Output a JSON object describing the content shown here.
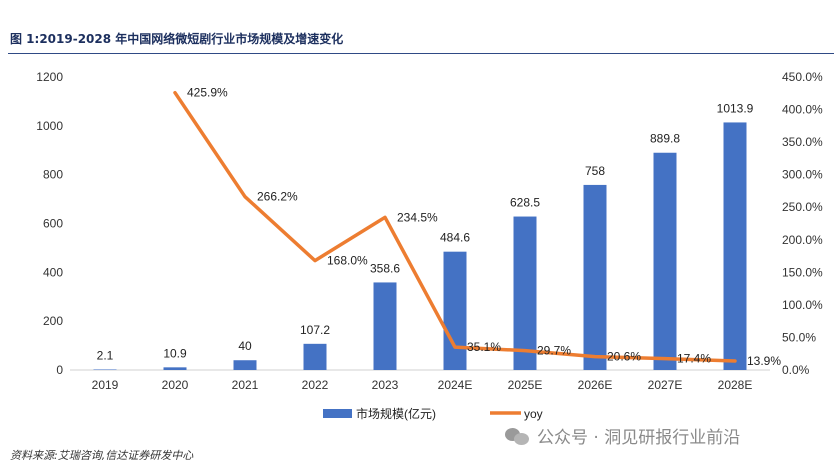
{
  "title": "图 1:2019-2028 年中国网络微短剧行业市场规模及增速变化",
  "source": "资料来源:艾瑞咨询,信达证券研发中心",
  "watermark": "公众号 · 洞见研报行业前沿",
  "chart_data": {
    "type": "bar",
    "categories": [
      "2019",
      "2020",
      "2021",
      "2022",
      "2023",
      "2024E",
      "2025E",
      "2026E",
      "2027E",
      "2028E"
    ],
    "series": [
      {
        "name": "市场规模(亿元)",
        "type": "bar",
        "axis": "left",
        "color": "#4472c4",
        "values": [
          2.1,
          10.9,
          40,
          107.2,
          358.6,
          484.6,
          628.5,
          758,
          889.8,
          1013.9
        ],
        "labels": [
          "2.1",
          "10.9",
          "40",
          "107.2",
          "358.6",
          "484.6",
          "628.5",
          "758",
          "889.8",
          "1013.9"
        ]
      },
      {
        "name": "yoy",
        "type": "line",
        "axis": "right",
        "color": "#ed7d31",
        "values": [
          null,
          425.9,
          266.2,
          168.0,
          234.5,
          35.1,
          29.7,
          20.6,
          17.4,
          13.9
        ],
        "labels": [
          "",
          "425.9%",
          "266.2%",
          "168.0%",
          "234.5%",
          "35.1%",
          "29.7%",
          "20.6%",
          "17.4%",
          "13.9%"
        ]
      }
    ],
    "y_left": {
      "min": 0,
      "max": 1200,
      "step": 200,
      "ticks": [
        "0",
        "200",
        "400",
        "600",
        "800",
        "1000",
        "1200"
      ]
    },
    "y_right": {
      "min": 0,
      "max": 450,
      "step": 50,
      "ticks": [
        "0.0%",
        "50.0%",
        "100.0%",
        "150.0%",
        "200.0%",
        "250.0%",
        "300.0%",
        "350.0%",
        "400.0%",
        "450.0%"
      ]
    },
    "grid": false,
    "legend_position": "bottom"
  }
}
